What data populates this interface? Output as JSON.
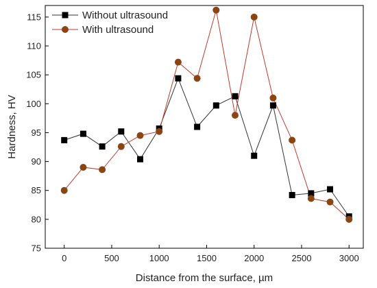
{
  "chart_data": {
    "type": "line",
    "xlabel": "Distance from the surface, µm",
    "ylabel": "Hardness, HV",
    "xlim": [
      -200,
      3150
    ],
    "ylim": [
      75,
      117
    ],
    "xticks": [
      0,
      500,
      1000,
      1500,
      2000,
      2500,
      3000
    ],
    "yticks": [
      75,
      80,
      85,
      90,
      95,
      100,
      105,
      110,
      115
    ],
    "grid": false,
    "legend_position": "top-left",
    "series": [
      {
        "name": "Without ultrasound",
        "marker": "square",
        "color": "#000000",
        "line_color": "#333333",
        "x": [
          0,
          200,
          400,
          600,
          800,
          1000,
          1200,
          1400,
          1600,
          1800,
          2000,
          2200,
          2400,
          2600,
          2800,
          3000
        ],
        "y": [
          93.7,
          94.8,
          92.6,
          95.2,
          90.4,
          95.7,
          104.4,
          96.0,
          99.7,
          101.3,
          91.0,
          99.7,
          84.2,
          84.5,
          85.2,
          80.5
        ]
      },
      {
        "name": "With ultrasound",
        "marker": "circle",
        "color": "#8B4513",
        "line_color": "#c0392b",
        "x": [
          0,
          200,
          400,
          600,
          800,
          1000,
          1200,
          1400,
          1600,
          1800,
          2000,
          2200,
          2400,
          2600,
          2800,
          3000
        ],
        "y": [
          85.0,
          89.0,
          88.6,
          92.6,
          94.5,
          95.2,
          107.2,
          104.4,
          116.2,
          98.0,
          115.0,
          101.0,
          93.7,
          83.6,
          83.0,
          80.0
        ]
      }
    ]
  }
}
